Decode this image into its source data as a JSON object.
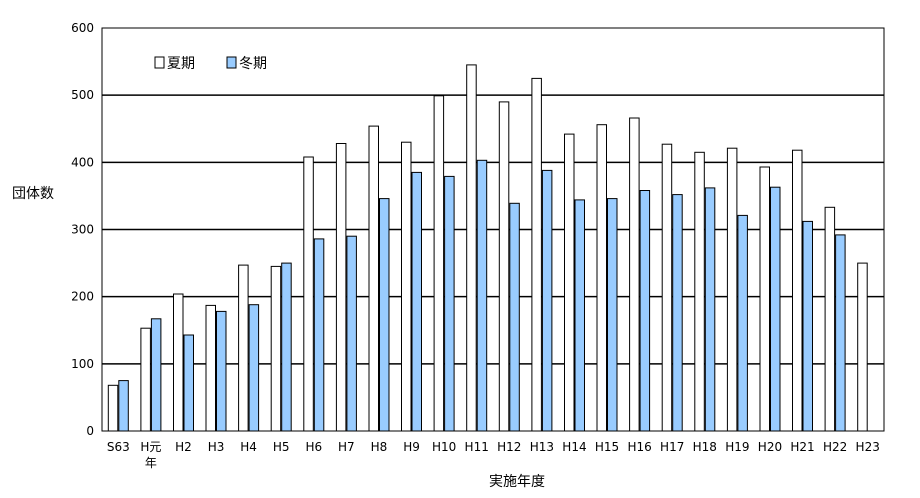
{
  "chart_data": {
    "type": "bar",
    "title": "",
    "xlabel": "実施年度",
    "ylabel": "団体数",
    "ylim": [
      0,
      600
    ],
    "yticks": [
      0,
      100,
      200,
      300,
      400,
      500,
      600
    ],
    "grid": true,
    "legend_position": "top-left",
    "categories": [
      "S63",
      "H元\n年",
      "H2",
      "H3",
      "H4",
      "H5",
      "H6",
      "H7",
      "H8",
      "H9",
      "H10",
      "H11",
      "H12",
      "H13",
      "H14",
      "H15",
      "H16",
      "H17",
      "H18",
      "H19",
      "H20",
      "H21",
      "H22",
      "H23"
    ],
    "series": [
      {
        "name": "夏期",
        "color": "#ffffff",
        "values": [
          68,
          153,
          204,
          187,
          247,
          245,
          408,
          428,
          454,
          430,
          499,
          545,
          490,
          525,
          442,
          456,
          466,
          427,
          415,
          421,
          393,
          418,
          333,
          250
        ]
      },
      {
        "name": "冬期",
        "color": "#99ccff",
        "values": [
          75,
          167,
          143,
          178,
          188,
          250,
          286,
          290,
          346,
          385,
          379,
          403,
          339,
          388,
          344,
          346,
          358,
          352,
          362,
          321,
          363,
          312,
          292,
          null
        ]
      }
    ]
  }
}
